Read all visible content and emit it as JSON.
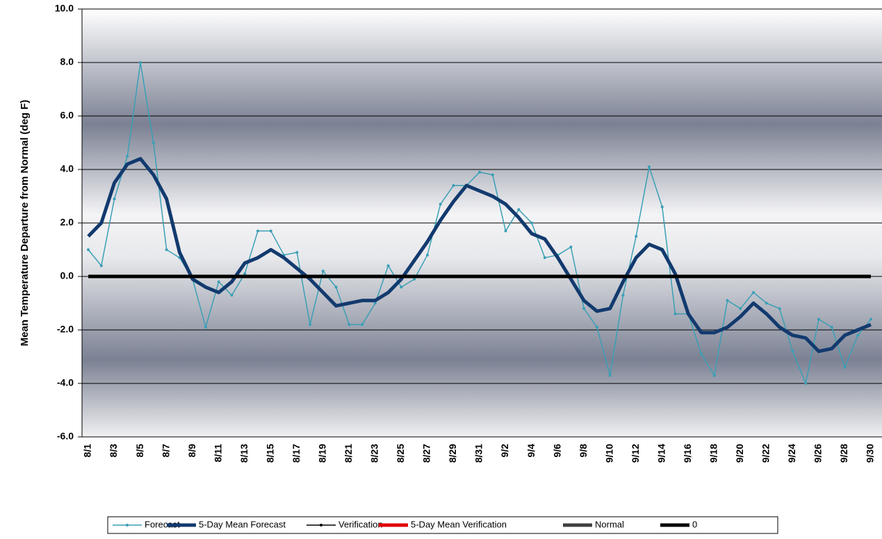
{
  "chart_data": {
    "type": "line",
    "y_label": "Mean Temperature Departure from Normal (deg F)",
    "categories": [
      "8/1",
      null,
      "8/3",
      null,
      "8/5",
      null,
      "8/7",
      null,
      "8/9",
      null,
      "8/11",
      null,
      "8/13",
      null,
      "8/15",
      null,
      "8/17",
      null,
      "8/19",
      null,
      "8/21",
      null,
      "8/23",
      null,
      "8/25",
      null,
      "8/27",
      null,
      "8/29",
      null,
      "8/31",
      null,
      "9/2",
      null,
      "9/4",
      null,
      "9/6",
      null,
      "9/8",
      null,
      "9/10",
      null,
      "9/12",
      null,
      "9/14",
      null,
      "9/16",
      null,
      "9/18",
      null,
      "9/20",
      null,
      "9/22",
      null,
      "9/24",
      null,
      "9/26",
      null,
      "9/28",
      null,
      "9/30"
    ],
    "ylim": [
      -6,
      10
    ],
    "yticks": [
      {
        "value": 10,
        "label": "10.0"
      },
      {
        "value": 8,
        "label": "8.0"
      },
      {
        "value": 6,
        "label": "6.0"
      },
      {
        "value": 4,
        "label": "4.0"
      },
      {
        "value": 2,
        "label": "2.0"
      },
      {
        "value": 0,
        "label": "0.0"
      },
      {
        "value": -2,
        "label": "-2.0"
      },
      {
        "value": -4,
        "label": "-4.0"
      },
      {
        "value": -6,
        "label": "-6.0"
      }
    ],
    "grid": true,
    "legend": "bottom",
    "series": [
      {
        "name": "Forecast",
        "color": "#3a9fb5",
        "width": 1.5,
        "marker": true,
        "values": [
          1.0,
          0.4,
          2.9,
          4.5,
          8.0,
          5.0,
          1.0,
          0.7,
          -0.1,
          -1.9,
          -0.2,
          -0.7,
          0.1,
          1.7,
          1.7,
          0.8,
          0.9,
          -1.8,
          0.2,
          -0.4,
          -1.8,
          -1.8,
          -1.0,
          0.4,
          -0.4,
          -0.1,
          0.8,
          2.7,
          3.4,
          3.4,
          3.9,
          3.8,
          1.7,
          2.5,
          2.0,
          0.7,
          0.8,
          1.1,
          -1.2,
          -1.9,
          -3.7,
          -0.7,
          1.5,
          4.1,
          2.6,
          -1.4,
          -1.4,
          -2.9,
          -3.7,
          -0.9,
          -1.2,
          -0.6,
          -1.0,
          -1.2,
          -2.8,
          -4.0,
          -1.6,
          -1.9,
          -3.4,
          -2.2,
          -1.6
        ]
      },
      {
        "name": "5-Day Mean Forecast",
        "color": "#123a6e",
        "width": 5,
        "marker": false,
        "values": [
          1.5,
          2.0,
          3.5,
          4.2,
          4.4,
          3.8,
          2.9,
          0.9,
          -0.1,
          -0.4,
          -0.6,
          -0.2,
          0.5,
          0.7,
          1.0,
          0.7,
          0.3,
          -0.1,
          -0.6,
          -1.1,
          -1.0,
          -0.9,
          -0.9,
          -0.6,
          -0.1,
          0.6,
          1.3,
          2.1,
          2.8,
          3.4,
          3.2,
          3.0,
          2.7,
          2.2,
          1.6,
          1.4,
          0.7,
          -0.1,
          -0.9,
          -1.3,
          -1.2,
          -0.2,
          0.7,
          1.2,
          1.0,
          0.1,
          -1.4,
          -2.1,
          -2.1,
          -1.9,
          -1.5,
          -1.0,
          -1.4,
          -1.9,
          -2.2,
          -2.3,
          -2.8,
          -2.7,
          -2.2,
          -2.0,
          -1.8
        ]
      },
      {
        "name": "Verification",
        "color": "#000000",
        "width": 1.5,
        "marker": true,
        "values": [
          null,
          null,
          null,
          null,
          null,
          null,
          null,
          null,
          null,
          null,
          null,
          null,
          null,
          null,
          null,
          null,
          null,
          null,
          null,
          null,
          null,
          null,
          null,
          null,
          null,
          null,
          null,
          null,
          null,
          null,
          null,
          null,
          null,
          null,
          null,
          null,
          null,
          null,
          null,
          null,
          null,
          null,
          null,
          null,
          null,
          null,
          null,
          null,
          null,
          null,
          null,
          null,
          null,
          null,
          null,
          null,
          null,
          null,
          null,
          null,
          null
        ]
      },
      {
        "name": "5-Day Mean Verification",
        "color": "#e00000",
        "width": 5,
        "marker": false,
        "values": [
          null,
          null,
          null,
          null,
          null,
          null,
          null,
          null,
          null,
          null,
          null,
          null,
          null,
          null,
          null,
          null,
          null,
          null,
          null,
          null,
          null,
          null,
          null,
          null,
          null,
          null,
          null,
          null,
          null,
          null,
          null,
          null,
          null,
          null,
          null,
          null,
          null,
          null,
          null,
          null,
          null,
          null,
          null,
          null,
          null,
          null,
          null,
          null,
          null,
          null,
          null,
          null,
          null,
          null,
          null,
          null,
          null,
          null,
          null,
          null,
          null
        ]
      },
      {
        "name": "Normal",
        "color": "#404040",
        "width": 5,
        "marker": false,
        "values": [
          null,
          null,
          null,
          null,
          null,
          null,
          null,
          null,
          null,
          null,
          null,
          null,
          null,
          null,
          null,
          null,
          null,
          null,
          null,
          null,
          null,
          null,
          null,
          null,
          null,
          null,
          null,
          null,
          null,
          null,
          null,
          null,
          null,
          null,
          null,
          null,
          null,
          null,
          null,
          null,
          null,
          null,
          null,
          null,
          null,
          null,
          null,
          null,
          null,
          null,
          null,
          null,
          null,
          null,
          null,
          null,
          null,
          null,
          null,
          null,
          null
        ]
      },
      {
        "name": "0",
        "color": "#000000",
        "width": 5,
        "marker": false,
        "values": [
          0,
          0,
          0,
          0,
          0,
          0,
          0,
          0,
          0,
          0,
          0,
          0,
          0,
          0,
          0,
          0,
          0,
          0,
          0,
          0,
          0,
          0,
          0,
          0,
          0,
          0,
          0,
          0,
          0,
          0,
          0,
          0,
          0,
          0,
          0,
          0,
          0,
          0,
          0,
          0,
          0,
          0,
          0,
          0,
          0,
          0,
          0,
          0,
          0,
          0,
          0,
          0,
          0,
          0,
          0,
          0,
          0,
          0,
          0,
          0,
          0
        ]
      }
    ]
  }
}
